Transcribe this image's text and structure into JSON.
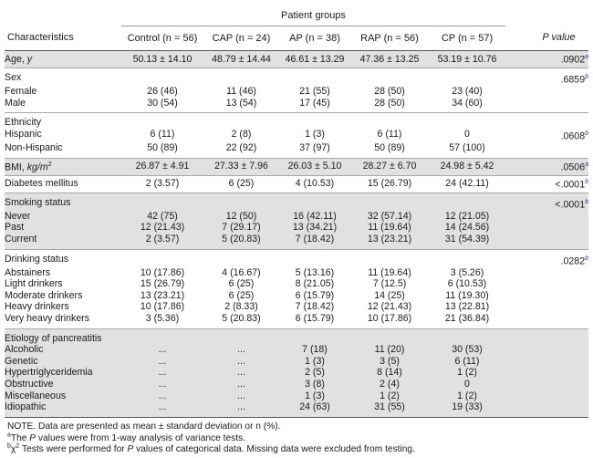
{
  "header": {
    "group_title": "Patient groups",
    "characteristics": "Characteristics",
    "columns": [
      "Control (n = 56)",
      "CAP (n = 24)",
      "AP (n = 38)",
      "RAP (n = 56)",
      "CP (n = 57)"
    ],
    "p_value": "P value"
  },
  "age": {
    "label": "Age, ",
    "unit": "y",
    "values": [
      "50.13 ± 14.10",
      "48.79 ± 14.44",
      "46.61 ± 13.29",
      "47.36 ± 13.25",
      "53.19 ± 10.76"
    ],
    "p": ".0902",
    "p_mark": "a"
  },
  "sex": {
    "label": "Sex",
    "p": ".6859",
    "p_mark": "b",
    "rows": [
      {
        "label": "Female",
        "values": [
          "26 (46)",
          "11 (46)",
          "21 (55)",
          "28 (50)",
          "23 (40)"
        ]
      },
      {
        "label": "Male",
        "values": [
          "30 (54)",
          "13 (54)",
          "17 (45)",
          "28 (50)",
          "34 (60)"
        ]
      }
    ]
  },
  "ethnicity": {
    "label": "Ethnicity",
    "p": ".0608",
    "p_mark": "b",
    "rows": [
      {
        "label": "Hispanic",
        "values": [
          "6 (11)",
          "2 (8)",
          "1 (3)",
          "6 (11)",
          "0"
        ]
      },
      {
        "label": "Non-Hispanic",
        "values": [
          "50 (89)",
          "22 (92)",
          "37 (97)",
          "50 (89)",
          "57 (100)"
        ]
      }
    ]
  },
  "bmi": {
    "label": "BMI, ",
    "unit": "kg/m",
    "unit_sup": "2",
    "values": [
      "26.87 ± 4.91",
      "27.33 ± 7.96",
      "26.03 ± 5.10",
      "28.27 ± 6.70",
      "24.98 ± 5.42"
    ],
    "p": ".0506",
    "p_mark": "a"
  },
  "diabetes": {
    "label": "Diabetes mellitus",
    "values": [
      "2 (3.57)",
      "6 (25)",
      "4 (10.53)",
      "15 (26.79)",
      "24 (42.11)"
    ],
    "p": "<.0001",
    "p_mark": "b"
  },
  "smoking": {
    "label": "Smoking status",
    "p": "<.0001",
    "p_mark": "b",
    "rows": [
      {
        "label": "Never",
        "values": [
          "42 (75)",
          "12 (50)",
          "16 (42.11)",
          "32 (57.14)",
          "12 (21.05)"
        ]
      },
      {
        "label": "Past",
        "values": [
          "12 (21.43)",
          "7 (29.17)",
          "13 (34.21)",
          "11 (19.64)",
          "14 (24.56)"
        ]
      },
      {
        "label": "Current",
        "values": [
          "2 (3.57)",
          "5 (20.83)",
          "7 (18.42)",
          "13 (23.21)",
          "31 (54.39)"
        ]
      }
    ]
  },
  "drinking": {
    "label": "Drinking status",
    "p": ".0282",
    "p_mark": "b",
    "rows": [
      {
        "label": "Abstainers",
        "values": [
          "10 (17.86)",
          "4 (16.67)",
          "5 (13.16)",
          "11 (19.64)",
          "3 (5.26)"
        ]
      },
      {
        "label": "Light drinkers",
        "values": [
          "15 (26.79)",
          "6 (25)",
          "8 (21.05)",
          "7 (12.5)",
          "6 (10.53)"
        ]
      },
      {
        "label": "Moderate drinkers",
        "values": [
          "13 (23.21)",
          "6 (25)",
          "6 (15.79)",
          "14 (25)",
          "11 (19.30)"
        ]
      },
      {
        "label": "Heavy drinkers",
        "values": [
          "10 (17.86)",
          "2 (8.33)",
          "7 (18.42)",
          "12 (21.43)",
          "13 (22.81)"
        ]
      },
      {
        "label": "Very heavy drinkers",
        "values": [
          "3 (5.36)",
          "5 (20.83)",
          "6 (15.79)",
          "10 (17.86)",
          "21 (36.84)"
        ]
      }
    ]
  },
  "etiology": {
    "label": "Etiology of pancreatitis",
    "rows": [
      {
        "label": "Alcoholic",
        "values": [
          "...",
          "...",
          "7 (18)",
          "11 (20)",
          "30 (53)"
        ]
      },
      {
        "label": "Genetic",
        "values": [
          "...",
          "...",
          "1 (3)",
          "3 (5)",
          "6 (11)"
        ]
      },
      {
        "label": "Hypertriglyceridemia",
        "values": [
          "...",
          "...",
          "2 (5)",
          "8 (14)",
          "1 (2)"
        ]
      },
      {
        "label": "Obstructive",
        "values": [
          "...",
          "...",
          "3 (8)",
          "2 (4)",
          "0"
        ]
      },
      {
        "label": "Miscellaneous",
        "values": [
          "...",
          "...",
          "1 (3)",
          "1 (2)",
          "1 (2)"
        ]
      },
      {
        "label": "Idiopathic",
        "values": [
          "...",
          "...",
          "24 (63)",
          "31 (55)",
          "19 (33)"
        ]
      }
    ]
  },
  "notes": {
    "note": "NOTE. Data are presented as mean ± standard deviation or n (%).",
    "a_mark": "a",
    "a_text_1": "The ",
    "a_text_p": "P",
    "a_text_2": " values were from 1-way analysis of variance tests.",
    "b_mark": "b",
    "b_chi": "χ",
    "b_sup2": "2",
    "b_text_1": " Tests were performed for ",
    "b_text_p": "P",
    "b_text_2": " values of categorical data. Missing data were excluded from testing."
  }
}
